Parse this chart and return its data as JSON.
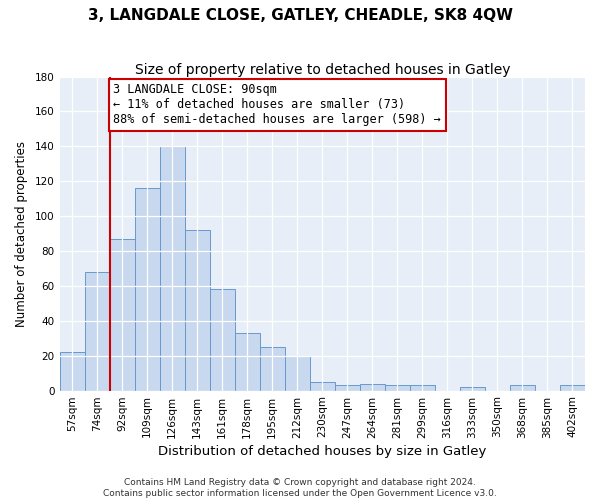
{
  "title": "3, LANGDALE CLOSE, GATLEY, CHEADLE, SK8 4QW",
  "subtitle": "Size of property relative to detached houses in Gatley",
  "xlabel": "Distribution of detached houses by size in Gatley",
  "ylabel": "Number of detached properties",
  "bin_labels": [
    "57sqm",
    "74sqm",
    "92sqm",
    "109sqm",
    "126sqm",
    "143sqm",
    "161sqm",
    "178sqm",
    "195sqm",
    "212sqm",
    "230sqm",
    "247sqm",
    "264sqm",
    "281sqm",
    "299sqm",
    "316sqm",
    "333sqm",
    "350sqm",
    "368sqm",
    "385sqm",
    "402sqm"
  ],
  "bar_heights": [
    22,
    68,
    87,
    116,
    140,
    92,
    58,
    33,
    25,
    20,
    5,
    3,
    4,
    3,
    3,
    0,
    2,
    0,
    3,
    0,
    3
  ],
  "bar_color": "#c8d8ee",
  "bar_edge_color": "#6699cc",
  "property_line_color": "#cc0000",
  "annotation_line1": "3 LANGDALE CLOSE: 90sqm",
  "annotation_line2": "← 11% of detached houses are smaller (73)",
  "annotation_line3": "88% of semi-detached houses are larger (598) →",
  "annotation_box_color": "#ffffff",
  "annotation_box_edge_color": "#cc0000",
  "ylim": [
    0,
    180
  ],
  "yticks": [
    0,
    20,
    40,
    60,
    80,
    100,
    120,
    140,
    160,
    180
  ],
  "bg_color": "#e8eef8",
  "footer_line1": "Contains HM Land Registry data © Crown copyright and database right 2024.",
  "footer_line2": "Contains public sector information licensed under the Open Government Licence v3.0.",
  "title_fontsize": 11,
  "subtitle_fontsize": 10,
  "xlabel_fontsize": 9.5,
  "ylabel_fontsize": 8.5,
  "tick_fontsize": 7.5,
  "annotation_fontsize": 8.5,
  "footer_fontsize": 6.5
}
